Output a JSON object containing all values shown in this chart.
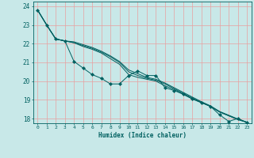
{
  "xlabel": "Humidex (Indice chaleur)",
  "xlim": [
    -0.5,
    23.5
  ],
  "ylim": [
    17.75,
    24.25
  ],
  "yticks": [
    18,
    19,
    20,
    21,
    22,
    23,
    24
  ],
  "xticks": [
    0,
    1,
    2,
    3,
    4,
    5,
    6,
    7,
    8,
    9,
    10,
    11,
    12,
    13,
    14,
    15,
    16,
    17,
    18,
    19,
    20,
    21,
    22,
    23
  ],
  "background_color": "#c8e8e8",
  "grid_color": "#e8a0a0",
  "line_color": "#006060",
  "series": [
    [
      23.8,
      23.0,
      22.25,
      22.15,
      21.05,
      20.7,
      20.35,
      20.15,
      19.85,
      19.85,
      20.3,
      20.55,
      20.3,
      20.3,
      19.65,
      19.5,
      19.3,
      19.05,
      18.85,
      18.65,
      18.2,
      17.85,
      18.0,
      17.8
    ],
    [
      23.8,
      23.0,
      22.25,
      22.15,
      22.05,
      21.85,
      21.7,
      21.5,
      21.2,
      20.9,
      20.35,
      20.2,
      20.1,
      20.0,
      19.75,
      19.55,
      19.3,
      19.05,
      18.85,
      18.65,
      18.35,
      18.15,
      17.95,
      17.8
    ],
    [
      23.8,
      23.0,
      22.25,
      22.15,
      22.05,
      21.9,
      21.75,
      21.55,
      21.3,
      21.0,
      20.5,
      20.3,
      20.15,
      20.05,
      19.85,
      19.6,
      19.35,
      19.1,
      18.88,
      18.65,
      18.35,
      18.15,
      17.95,
      17.8
    ],
    [
      23.8,
      23.0,
      22.25,
      22.15,
      22.1,
      21.95,
      21.8,
      21.6,
      21.35,
      21.05,
      20.6,
      20.4,
      20.2,
      20.1,
      19.9,
      19.65,
      19.4,
      19.15,
      18.9,
      18.68,
      18.38,
      18.18,
      17.98,
      17.8
    ]
  ],
  "figsize": [
    3.2,
    2.0
  ],
  "dpi": 100
}
